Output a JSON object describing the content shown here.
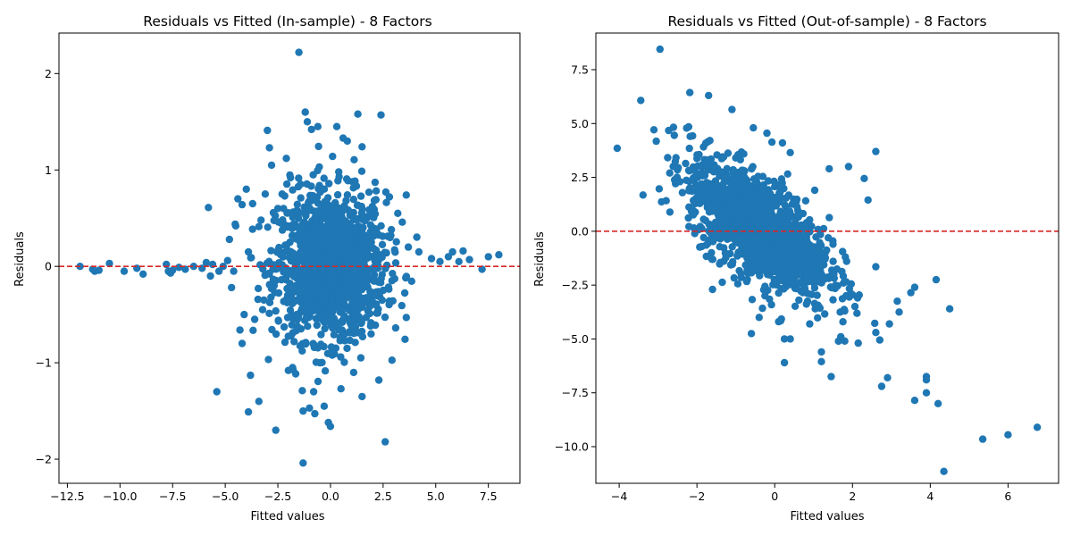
{
  "chart_data": [
    {
      "type": "scatter",
      "title": "Residuals vs Fitted (In-sample) - 8 Factors",
      "xlabel": "Fitted values",
      "ylabel": "Residuals",
      "xlim": [
        -12.9,
        9.0
      ],
      "ylim": [
        -2.25,
        2.42
      ],
      "xticks": [
        -12.5,
        -10,
        -7.5,
        -5,
        -2.5,
        0,
        2.5,
        5,
        7.5
      ],
      "xtick_labels": [
        "−12.5",
        "−10.0",
        "−7.5",
        "−5.0",
        "−2.5",
        "0.0",
        "2.5",
        "5.0",
        "7.5"
      ],
      "yticks": [
        -2,
        -1,
        0,
        1,
        2
      ],
      "ytick_labels": [
        "−2",
        "−1",
        "0",
        "1",
        "2"
      ],
      "reference_line": {
        "y": 0,
        "color": "#d62728",
        "style": "dashed"
      },
      "marker_color": "#1f77b4",
      "series": [
        {
          "points": [
            [
              -11.9,
              0.0
            ],
            [
              -11.3,
              -0.03
            ],
            [
              -11.2,
              -0.05
            ],
            [
              -11.0,
              -0.04
            ],
            [
              -10.5,
              0.03
            ],
            [
              -9.8,
              -0.05
            ],
            [
              -9.2,
              -0.02
            ],
            [
              -8.9,
              -0.08
            ],
            [
              -7.8,
              0.02
            ],
            [
              -7.7,
              -0.05
            ],
            [
              -7.6,
              -0.07
            ],
            [
              -7.5,
              -0.04
            ],
            [
              -7.2,
              -0.01
            ],
            [
              -6.9,
              -0.03
            ],
            [
              -6.5,
              0.0
            ],
            [
              -6.1,
              -0.02
            ],
            [
              -5.9,
              0.04
            ],
            [
              -5.8,
              0.61
            ],
            [
              -5.7,
              -0.1
            ],
            [
              -5.6,
              0.02
            ],
            [
              -5.4,
              -1.3
            ],
            [
              -5.3,
              -0.05
            ],
            [
              -5.1,
              0.0
            ],
            [
              -4.8,
              0.28
            ],
            [
              -4.7,
              -0.22
            ],
            [
              -4.6,
              -0.05
            ],
            [
              -4.5,
              0.42
            ],
            [
              -4.4,
              0.7
            ],
            [
              -4.3,
              -0.66
            ],
            [
              -4.2,
              -0.8
            ],
            [
              -4.2,
              0.64
            ],
            [
              -4.1,
              -0.5
            ],
            [
              -4.0,
              0.8
            ],
            [
              -3.9,
              -1.51
            ],
            [
              -3.8,
              -1.13
            ],
            [
              -3.7,
              0.65
            ],
            [
              -3.6,
              -0.55
            ],
            [
              -3.4,
              -1.4
            ],
            [
              -3.3,
              0.48
            ],
            [
              -3.1,
              0.75
            ],
            [
              -3.0,
              1.41
            ],
            [
              -2.9,
              1.23
            ],
            [
              -2.8,
              1.05
            ],
            [
              -2.6,
              -1.7
            ],
            [
              -2.5,
              0.6
            ],
            [
              -2.3,
              0.75
            ],
            [
              -2.1,
              1.12
            ],
            [
              -2.0,
              -1.08
            ],
            [
              -1.9,
              0.92
            ],
            [
              -1.8,
              -1.05
            ],
            [
              -1.5,
              2.22
            ],
            [
              -1.3,
              -2.04
            ],
            [
              -1.3,
              -1.5
            ],
            [
              -1.2,
              1.6
            ],
            [
              -1.1,
              1.5
            ],
            [
              -1.0,
              -1.47
            ],
            [
              -0.9,
              1.42
            ],
            [
              -0.8,
              -1.3
            ],
            [
              -0.6,
              1.45
            ],
            [
              -0.3,
              -1.45
            ],
            [
              -0.1,
              -1.62
            ],
            [
              0.0,
              -1.66
            ],
            [
              0.1,
              1.14
            ],
            [
              0.3,
              1.45
            ],
            [
              0.5,
              -1.27
            ],
            [
              0.6,
              1.33
            ],
            [
              0.8,
              1.3
            ],
            [
              1.1,
              -1.1
            ],
            [
              1.3,
              1.58
            ],
            [
              1.5,
              -1.35
            ],
            [
              1.5,
              1.24
            ],
            [
              2.3,
              -1.18
            ],
            [
              2.4,
              1.57
            ],
            [
              2.6,
              -1.82
            ],
            [
              2.8,
              0.72
            ],
            [
              3.2,
              0.55
            ],
            [
              3.6,
              0.74
            ],
            [
              3.6,
              -0.53
            ],
            [
              3.7,
              0.2
            ],
            [
              4.2,
              0.15
            ],
            [
              4.8,
              0.08
            ],
            [
              5.2,
              0.05
            ],
            [
              5.6,
              0.1
            ],
            [
              5.8,
              0.15
            ],
            [
              6.1,
              0.05
            ],
            [
              6.3,
              0.16
            ],
            [
              6.6,
              0.07
            ],
            [
              7.2,
              -0.03
            ],
            [
              7.5,
              0.1
            ],
            [
              8.0,
              0.12
            ]
          ],
          "cluster": {
            "x_center": 0.0,
            "x_spread": 1.3,
            "y_center": 0.0,
            "y_spread": 0.38,
            "count": 1400
          }
        }
      ]
    },
    {
      "type": "scatter",
      "title": "Residuals vs Fitted (Out-of-sample) - 8 Factors",
      "xlabel": "Fitted values",
      "ylabel": "Residuals",
      "xlim": [
        -4.6,
        7.3
      ],
      "ylim": [
        -11.7,
        9.2
      ],
      "xticks": [
        -4,
        -2,
        0,
        2,
        4,
        6
      ],
      "xtick_labels": [
        "−4",
        "−2",
        "0",
        "2",
        "4",
        "6"
      ],
      "yticks": [
        -10,
        -7.5,
        -5,
        -2.5,
        0,
        2.5,
        5,
        7.5
      ],
      "ytick_labels": [
        "−10.0",
        "−7.5",
        "−5.0",
        "−2.5",
        "0.0",
        "2.5",
        "5.0",
        "7.5"
      ],
      "reference_line": {
        "y": 0,
        "color": "#d62728",
        "style": "dashed"
      },
      "marker_color": "#1f77b4",
      "series": [
        {
          "points": [
            [
              -2.95,
              8.45
            ],
            [
              -4.05,
              3.85
            ],
            [
              -1.7,
              6.3
            ],
            [
              -1.1,
              5.65
            ],
            [
              -0.55,
              4.8
            ],
            [
              0.2,
              4.1
            ],
            [
              -0.2,
              4.55
            ],
            [
              0.4,
              3.65
            ],
            [
              2.6,
              3.7
            ],
            [
              1.9,
              3.0
            ],
            [
              2.3,
              2.45
            ],
            [
              1.4,
              2.9
            ],
            [
              -2.7,
              2.7
            ],
            [
              -2.5,
              2.85
            ],
            [
              -2.2,
              2.8
            ],
            [
              -1.6,
              -2.7
            ],
            [
              -1.4,
              -1.45
            ],
            [
              -0.6,
              -4.75
            ],
            [
              -0.4,
              -4.0
            ],
            [
              0.1,
              -4.2
            ],
            [
              0.25,
              -6.1
            ],
            [
              0.25,
              -5.0
            ],
            [
              0.4,
              -5.0
            ],
            [
              1.2,
              -5.6
            ],
            [
              1.2,
              -6.05
            ],
            [
              1.45,
              -6.75
            ],
            [
              1.7,
              -4.9
            ],
            [
              1.8,
              -5.1
            ],
            [
              2.6,
              -4.7
            ],
            [
              2.7,
              -5.05
            ],
            [
              2.75,
              -7.2
            ],
            [
              2.9,
              -6.8
            ],
            [
              2.95,
              -4.3
            ],
            [
              3.15,
              -3.25
            ],
            [
              3.2,
              -3.75
            ],
            [
              3.5,
              -2.85
            ],
            [
              3.6,
              -2.6
            ],
            [
              3.6,
              -7.85
            ],
            [
              3.9,
              -7.5
            ],
            [
              3.9,
              -6.75
            ],
            [
              3.9,
              -6.9
            ],
            [
              4.15,
              -2.25
            ],
            [
              4.2,
              -8.0
            ],
            [
              4.35,
              -11.15
            ],
            [
              4.5,
              -3.6
            ],
            [
              5.35,
              -9.65
            ],
            [
              6.0,
              -9.45
            ],
            [
              6.75,
              -9.1
            ],
            [
              2.4,
              1.45
            ],
            [
              2.6,
              -1.65
            ],
            [
              2.0,
              -2.95
            ],
            [
              1.8,
              -3.7
            ],
            [
              0.9,
              -4.3
            ]
          ],
          "cluster": {
            "x_center": -0.4,
            "x_spread": 0.9,
            "y_center": 0.2,
            "y_spread": 1.2,
            "slope": -1.1,
            "count": 1400
          }
        }
      ]
    }
  ]
}
